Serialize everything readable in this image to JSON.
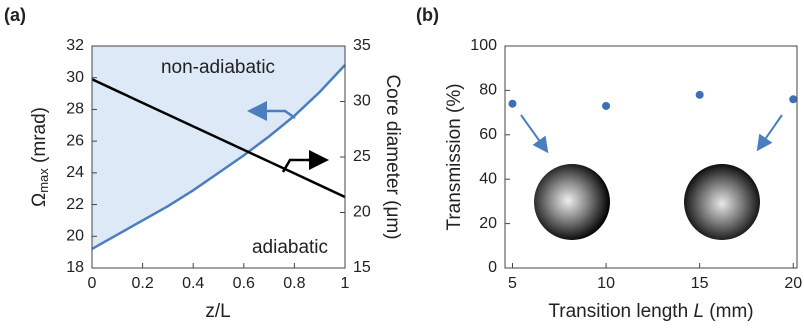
{
  "chart_data": [
    {
      "type": "line",
      "panel_label": "(a)",
      "x_label": "z/L",
      "y_label": {
        "symbol": "Ω",
        "sub": "max",
        "unit": " (mrad)"
      },
      "y2_label": "Core diameter (μm)",
      "x": [
        0,
        0.1,
        0.2,
        0.3,
        0.4,
        0.5,
        0.6,
        0.7,
        0.8,
        0.9,
        1
      ],
      "series": [
        {
          "color": "#4a7ebf",
          "values": [
            19.2,
            20.1,
            21.0,
            21.9,
            22.9,
            24.0,
            25.1,
            26.3,
            27.6,
            29.1,
            30.8
          ],
          "fill_above": "#dde9f7"
        },
        {
          "color": "#000000",
          "axis": "y2",
          "values": [
            32,
            30.94,
            29.88,
            28.82,
            27.76,
            26.7,
            25.64,
            24.58,
            23.52,
            22.46,
            21.4
          ]
        }
      ],
      "annotations": [
        "non-adiabatic",
        "adiabatic"
      ],
      "xlim": [
        0,
        1
      ],
      "xticks": [
        0,
        0.2,
        0.4,
        0.6,
        0.8,
        1
      ],
      "ylim": [
        18,
        32
      ],
      "yticks": [
        18,
        20,
        22,
        24,
        26,
        28,
        30,
        32
      ],
      "y2lim": [
        15,
        35
      ],
      "y2ticks": [
        15,
        20,
        25,
        30,
        35
      ]
    },
    {
      "type": "scatter",
      "panel_label": "(b)",
      "x_label": {
        "pre": "Transition length ",
        "var": "L",
        "post": " (mm)"
      },
      "y_label": "Transmission (%)",
      "x": [
        5,
        10,
        15,
        20
      ],
      "values": [
        74,
        73,
        78,
        76
      ],
      "color": "#3c6fb5",
      "xlim": [
        4.6,
        20.2
      ],
      "xticks": [
        5,
        10,
        15,
        20
      ],
      "ylim": [
        0,
        100
      ],
      "yticks": [
        0,
        20,
        40,
        60,
        80,
        100
      ]
    }
  ]
}
